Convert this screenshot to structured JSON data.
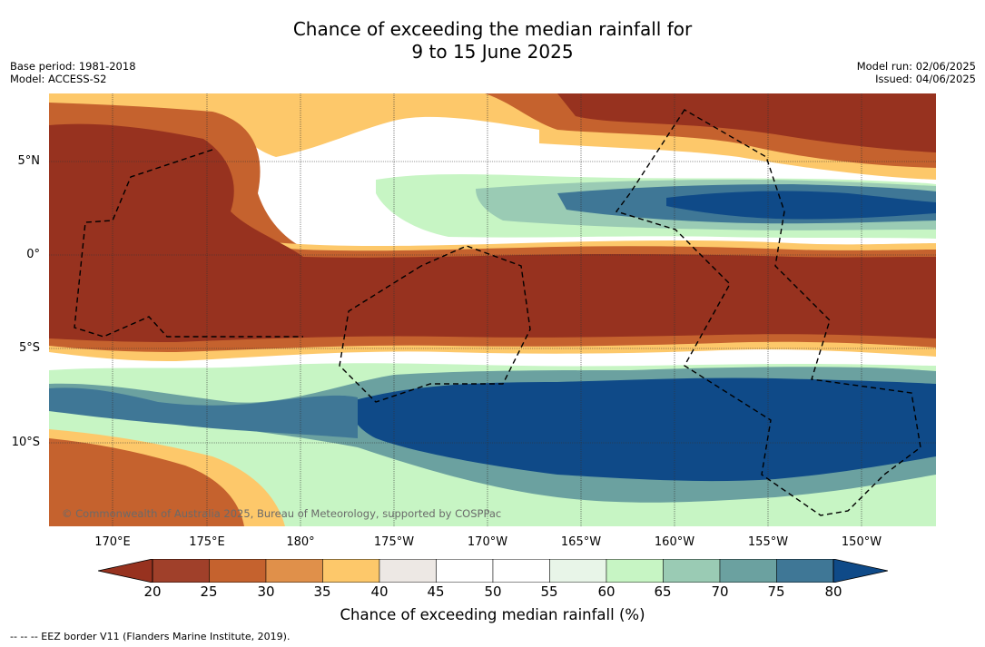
{
  "title_line1": "Chance of exceeding the median rainfall for",
  "title_line2": "9 to 15 June 2025",
  "meta_left": {
    "base_period": "Base period: 1981-2018",
    "model": "Model: ACCESS-S2"
  },
  "meta_right": {
    "model_run": "Model run: 02/06/2025",
    "issued": "Issued: 04/06/2025"
  },
  "lat_labels": [
    "5°N",
    "0°",
    "5°S",
    "10°S"
  ],
  "lon_labels": [
    "170°E",
    "175°E",
    "180°",
    "175°W",
    "170°W",
    "165°W",
    "160°W",
    "155°W",
    "150°W"
  ],
  "copyright": "© Commonwealth of Australia 2025, Bureau of Meteorology, supported by COSPPac",
  "colorbar": {
    "ticks": [
      "20",
      "25",
      "30",
      "35",
      "40",
      "45",
      "50",
      "55",
      "60",
      "65",
      "70",
      "75",
      "80"
    ],
    "colors": [
      "#a0402a",
      "#c5622e",
      "#e0904a",
      "#fdc86a",
      "#ede8e4",
      "#ffffff",
      "#ffffff",
      "#e8f5e8",
      "#c7f5c4",
      "#9acbb4",
      "#6ba1a0",
      "#3f7796"
    ],
    "low_color": "#97321f",
    "high_color": "#0f4a88",
    "label": "Chance of exceeding median rainfall (%)"
  },
  "eez_note": "-- -- -- EEZ border V11 (Flanders Marine Institute, 2019)."
}
